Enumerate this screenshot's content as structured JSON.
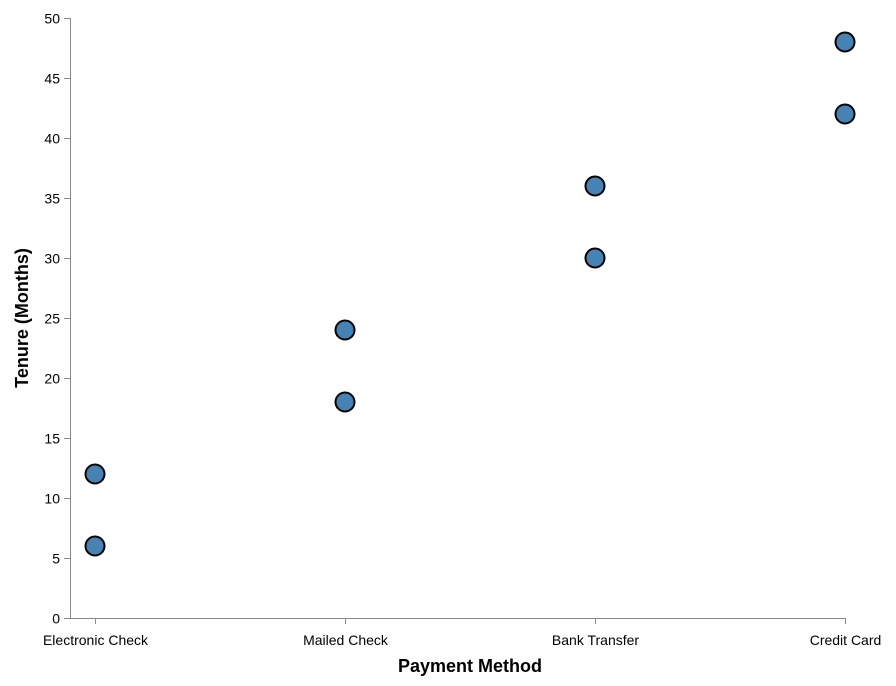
{
  "chart_data": {
    "type": "scatter",
    "categories": [
      "Electronic Check",
      "Mailed Check",
      "Bank Transfer",
      "Credit Card"
    ],
    "points": [
      {
        "x": "Electronic Check",
        "y": 6
      },
      {
        "x": "Electronic Check",
        "y": 12
      },
      {
        "x": "Mailed Check",
        "y": 18
      },
      {
        "x": "Mailed Check",
        "y": 24
      },
      {
        "x": "Bank Transfer",
        "y": 30
      },
      {
        "x": "Bank Transfer",
        "y": 36
      },
      {
        "x": "Credit Card",
        "y": 42
      },
      {
        "x": "Credit Card",
        "y": 48
      }
    ],
    "xlabel": "Payment Method",
    "ylabel": "Tenure (Months)",
    "ylim": [
      0,
      50
    ],
    "yticks": [
      0,
      5,
      10,
      15,
      20,
      25,
      30,
      35,
      40,
      45,
      50
    ],
    "grid": false,
    "point_color": "#4682b4",
    "point_stroke": "#000000"
  }
}
